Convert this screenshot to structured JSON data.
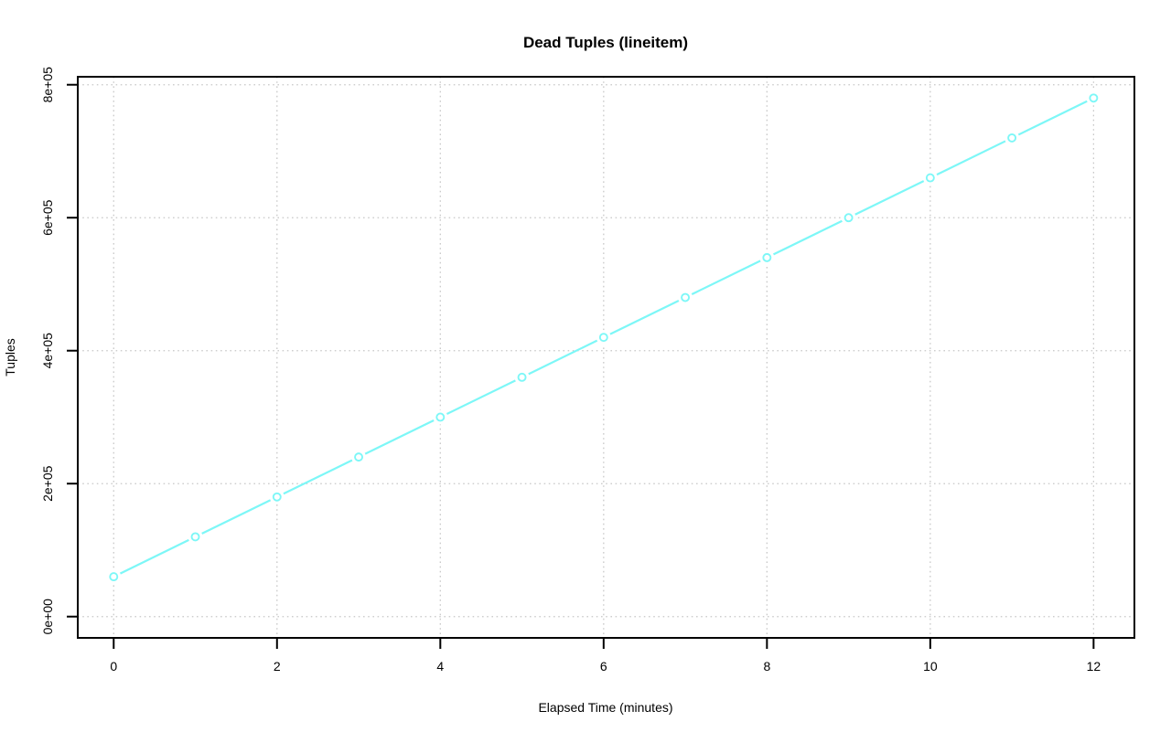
{
  "chart_data": {
    "type": "line",
    "title": "Dead Tuples (lineitem)",
    "xlabel": "Elapsed Time (minutes)",
    "ylabel": "Tuples",
    "x": [
      0,
      1,
      2,
      3,
      4,
      5,
      6,
      7,
      8,
      9,
      10,
      11,
      12
    ],
    "y": [
      60000,
      120000,
      180000,
      240000,
      300000,
      360000,
      420000,
      480000,
      540000,
      600000,
      660000,
      720000,
      780000
    ],
    "x_ticks": {
      "values": [
        0,
        2,
        4,
        6,
        8,
        10,
        12
      ],
      "labels": [
        "0",
        "2",
        "4",
        "6",
        "8",
        "10",
        "12"
      ]
    },
    "y_ticks": {
      "values": [
        0,
        200000,
        400000,
        600000,
        800000
      ],
      "labels": [
        "0e+00",
        "2e+05",
        "4e+05",
        "6e+05",
        "8e+05"
      ]
    },
    "xlim": [
      -0.44,
      12.5
    ],
    "ylim": [
      -32000,
      812000
    ],
    "grid": true,
    "legend": "none",
    "point_style": "open-circle",
    "line_color": "#7df7f7",
    "grid_color": "#c8c8c8",
    "frame_color": "#000000",
    "background_color": "#ffffff"
  }
}
